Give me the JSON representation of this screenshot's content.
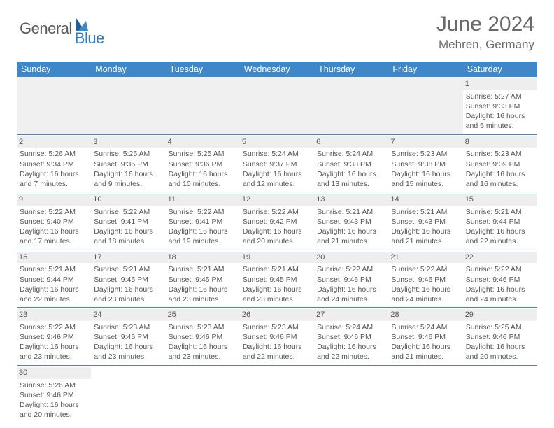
{
  "brand": {
    "part1": "General",
    "part2": "Blue"
  },
  "title": "June 2024",
  "location": "Mehren, Germany",
  "colors": {
    "header_bg": "#3e88c9",
    "header_text": "#ffffff",
    "brand_blue": "#2f7cc4",
    "text": "#555555",
    "daynum_bg": "#eeeeee",
    "empty_bg": "#f0f0f0",
    "rule": "#3e88c9"
  },
  "dayNames": [
    "Sunday",
    "Monday",
    "Tuesday",
    "Wednesday",
    "Thursday",
    "Friday",
    "Saturday"
  ],
  "firstWeekday": 6,
  "daysInMonth": 30,
  "days": {
    "1": {
      "sunrise": "5:27 AM",
      "sunset": "9:33 PM",
      "dl_h": 16,
      "dl_m": 6
    },
    "2": {
      "sunrise": "5:26 AM",
      "sunset": "9:34 PM",
      "dl_h": 16,
      "dl_m": 7
    },
    "3": {
      "sunrise": "5:25 AM",
      "sunset": "9:35 PM",
      "dl_h": 16,
      "dl_m": 9
    },
    "4": {
      "sunrise": "5:25 AM",
      "sunset": "9:36 PM",
      "dl_h": 16,
      "dl_m": 10
    },
    "5": {
      "sunrise": "5:24 AM",
      "sunset": "9:37 PM",
      "dl_h": 16,
      "dl_m": 12
    },
    "6": {
      "sunrise": "5:24 AM",
      "sunset": "9:38 PM",
      "dl_h": 16,
      "dl_m": 13
    },
    "7": {
      "sunrise": "5:23 AM",
      "sunset": "9:38 PM",
      "dl_h": 16,
      "dl_m": 15
    },
    "8": {
      "sunrise": "5:23 AM",
      "sunset": "9:39 PM",
      "dl_h": 16,
      "dl_m": 16
    },
    "9": {
      "sunrise": "5:22 AM",
      "sunset": "9:40 PM",
      "dl_h": 16,
      "dl_m": 17
    },
    "10": {
      "sunrise": "5:22 AM",
      "sunset": "9:41 PM",
      "dl_h": 16,
      "dl_m": 18
    },
    "11": {
      "sunrise": "5:22 AM",
      "sunset": "9:41 PM",
      "dl_h": 16,
      "dl_m": 19
    },
    "12": {
      "sunrise": "5:22 AM",
      "sunset": "9:42 PM",
      "dl_h": 16,
      "dl_m": 20
    },
    "13": {
      "sunrise": "5:21 AM",
      "sunset": "9:43 PM",
      "dl_h": 16,
      "dl_m": 21
    },
    "14": {
      "sunrise": "5:21 AM",
      "sunset": "9:43 PM",
      "dl_h": 16,
      "dl_m": 21
    },
    "15": {
      "sunrise": "5:21 AM",
      "sunset": "9:44 PM",
      "dl_h": 16,
      "dl_m": 22
    },
    "16": {
      "sunrise": "5:21 AM",
      "sunset": "9:44 PM",
      "dl_h": 16,
      "dl_m": 22
    },
    "17": {
      "sunrise": "5:21 AM",
      "sunset": "9:45 PM",
      "dl_h": 16,
      "dl_m": 23
    },
    "18": {
      "sunrise": "5:21 AM",
      "sunset": "9:45 PM",
      "dl_h": 16,
      "dl_m": 23
    },
    "19": {
      "sunrise": "5:21 AM",
      "sunset": "9:45 PM",
      "dl_h": 16,
      "dl_m": 23
    },
    "20": {
      "sunrise": "5:22 AM",
      "sunset": "9:46 PM",
      "dl_h": 16,
      "dl_m": 24
    },
    "21": {
      "sunrise": "5:22 AM",
      "sunset": "9:46 PM",
      "dl_h": 16,
      "dl_m": 24
    },
    "22": {
      "sunrise": "5:22 AM",
      "sunset": "9:46 PM",
      "dl_h": 16,
      "dl_m": 24
    },
    "23": {
      "sunrise": "5:22 AM",
      "sunset": "9:46 PM",
      "dl_h": 16,
      "dl_m": 23
    },
    "24": {
      "sunrise": "5:23 AM",
      "sunset": "9:46 PM",
      "dl_h": 16,
      "dl_m": 23
    },
    "25": {
      "sunrise": "5:23 AM",
      "sunset": "9:46 PM",
      "dl_h": 16,
      "dl_m": 23
    },
    "26": {
      "sunrise": "5:23 AM",
      "sunset": "9:46 PM",
      "dl_h": 16,
      "dl_m": 22
    },
    "27": {
      "sunrise": "5:24 AM",
      "sunset": "9:46 PM",
      "dl_h": 16,
      "dl_m": 22
    },
    "28": {
      "sunrise": "5:24 AM",
      "sunset": "9:46 PM",
      "dl_h": 16,
      "dl_m": 21
    },
    "29": {
      "sunrise": "5:25 AM",
      "sunset": "9:46 PM",
      "dl_h": 16,
      "dl_m": 20
    },
    "30": {
      "sunrise": "5:26 AM",
      "sunset": "9:46 PM",
      "dl_h": 16,
      "dl_m": 20
    }
  },
  "labels": {
    "sunrise": "Sunrise:",
    "sunset": "Sunset:",
    "daylight_prefix": "Daylight:",
    "hours_word": "hours",
    "and_word": "and",
    "minutes_word": "minutes."
  }
}
